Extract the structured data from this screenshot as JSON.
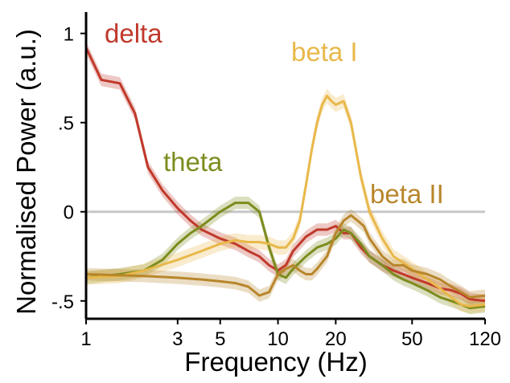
{
  "chart_data": {
    "type": "line",
    "xlabel": "Frequency (Hz)",
    "ylabel": "Normalised Power (a.u.)",
    "x_scale": "log",
    "xlim": [
      1,
      120
    ],
    "ylim": [
      -0.6,
      1.12
    ],
    "x_ticks": [
      1,
      3,
      5,
      10,
      20,
      50,
      120
    ],
    "x_tick_labels": [
      "1",
      "3",
      "5",
      "10",
      "20",
      "50",
      "120"
    ],
    "y_ticks": [
      1,
      0.5,
      0,
      -0.5
    ],
    "y_tick_labels": [
      "1",
      ".5",
      "0",
      "-.5"
    ],
    "reference_line_y": 0,
    "reference_line_color": "#c8c8c8",
    "grid": false,
    "legend": "labels placed next to curves",
    "series": [
      {
        "name": "delta",
        "color": "#c0392b",
        "x": [
          1,
          1.2,
          1.5,
          1.8,
          2.1,
          2.5,
          3,
          3.5,
          4,
          5,
          6,
          7,
          8,
          9,
          10,
          11,
          12,
          14,
          16,
          18,
          20,
          22,
          24,
          27,
          30,
          35,
          40,
          45,
          50,
          60,
          70,
          80,
          90,
          100,
          120
        ],
        "y": [
          0.92,
          0.74,
          0.72,
          0.55,
          0.25,
          0.12,
          0.02,
          -0.05,
          -0.1,
          -0.15,
          -0.18,
          -0.22,
          -0.25,
          -0.3,
          -0.33,
          -0.3,
          -0.22,
          -0.14,
          -0.1,
          -0.1,
          -0.08,
          -0.12,
          -0.12,
          -0.2,
          -0.25,
          -0.3,
          -0.33,
          -0.35,
          -0.37,
          -0.4,
          -0.43,
          -0.44,
          -0.46,
          -0.49,
          -0.5
        ],
        "band": 0.035
      },
      {
        "name": "theta",
        "color": "#7d8c1e",
        "x": [
          1,
          1.5,
          2,
          2.5,
          3,
          3.5,
          4,
          5,
          6,
          7,
          8,
          9,
          10,
          11,
          12,
          14,
          16,
          18,
          20,
          22,
          24,
          27,
          30,
          35,
          40,
          45,
          50,
          60,
          70,
          80,
          90,
          100,
          120
        ],
        "y": [
          -0.37,
          -0.35,
          -0.33,
          -0.27,
          -0.18,
          -0.12,
          -0.08,
          0.0,
          0.05,
          0.05,
          0.0,
          -0.2,
          -0.35,
          -0.37,
          -0.32,
          -0.25,
          -0.2,
          -0.18,
          -0.15,
          -0.1,
          -0.12,
          -0.18,
          -0.25,
          -0.3,
          -0.35,
          -0.38,
          -0.4,
          -0.44,
          -0.48,
          -0.5,
          -0.52,
          -0.54,
          -0.53
        ],
        "band": 0.035
      },
      {
        "name": "beta I",
        "color": "#e8b84a",
        "x": [
          1,
          1.5,
          2,
          3,
          4,
          5,
          6,
          7,
          8,
          9,
          10,
          11,
          12,
          13,
          14,
          15,
          16,
          17,
          18,
          19,
          20,
          22,
          24,
          27,
          30,
          35,
          40,
          50,
          60,
          70,
          80,
          90,
          100,
          120
        ],
        "y": [
          -0.37,
          -0.36,
          -0.33,
          -0.27,
          -0.22,
          -0.18,
          -0.16,
          -0.17,
          -0.17,
          -0.18,
          -0.2,
          -0.2,
          -0.15,
          -0.05,
          0.15,
          0.35,
          0.5,
          0.6,
          0.65,
          0.62,
          0.6,
          0.62,
          0.5,
          0.2,
          0.0,
          -0.15,
          -0.25,
          -0.32,
          -0.38,
          -0.43,
          -0.48,
          -0.52,
          -0.53,
          -0.52
        ],
        "band": 0.04
      },
      {
        "name": "beta II",
        "color": "#b8862b",
        "x": [
          1,
          2,
          3,
          4,
          5,
          6,
          7,
          8,
          9,
          10,
          11,
          12,
          13,
          14,
          15,
          16,
          18,
          20,
          22,
          24,
          26,
          28,
          30,
          35,
          40,
          45,
          50,
          60,
          70,
          80,
          90,
          100,
          120
        ],
        "y": [
          -0.35,
          -0.36,
          -0.37,
          -0.38,
          -0.39,
          -0.4,
          -0.42,
          -0.47,
          -0.45,
          -0.35,
          -0.32,
          -0.3,
          -0.33,
          -0.35,
          -0.35,
          -0.32,
          -0.25,
          -0.12,
          -0.05,
          -0.02,
          -0.05,
          -0.08,
          -0.15,
          -0.25,
          -0.3,
          -0.3,
          -0.33,
          -0.35,
          -0.38,
          -0.42,
          -0.45,
          -0.48,
          -0.47
        ],
        "band": 0.035
      }
    ]
  }
}
